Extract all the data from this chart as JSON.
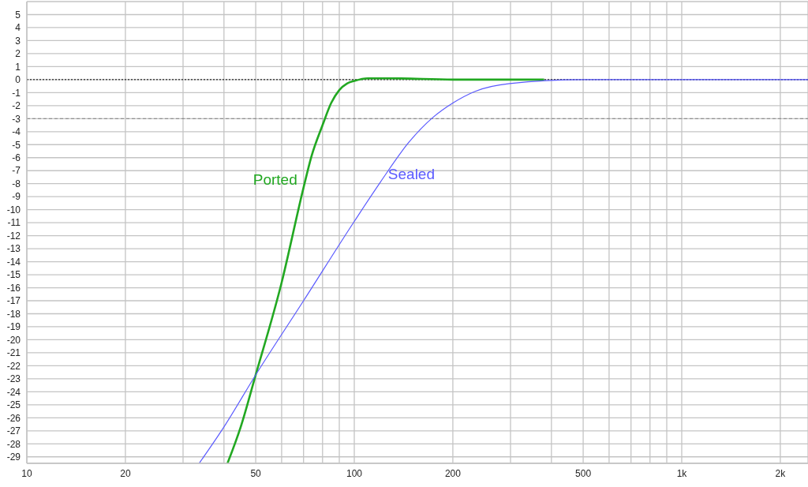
{
  "chart_data": {
    "type": "line",
    "xlim": [
      10,
      2430
    ],
    "ylim": [
      -29.5,
      6
    ],
    "log": "x",
    "xticks": [
      10,
      20,
      {
        "value": 30,
        "label": null
      },
      {
        "value": 40,
        "label": null
      },
      50,
      {
        "value": 60,
        "label": null
      },
      {
        "value": 70,
        "label": null
      },
      {
        "value": 80,
        "label": null
      },
      {
        "value": 90,
        "label": null
      },
      100,
      200,
      {
        "value": 300,
        "label": null
      },
      {
        "value": 400,
        "label": null
      },
      500,
      {
        "value": 600,
        "label": null
      },
      {
        "value": 700,
        "label": null
      },
      {
        "value": 800,
        "label": null
      },
      {
        "value": 900,
        "label": null
      },
      {
        "value": 1000,
        "label": "1k"
      },
      {
        "value": 2000,
        "label": "2k"
      }
    ],
    "yticks": [
      5,
      4,
      3,
      2,
      1,
      0,
      -1,
      -2,
      -3,
      -4,
      -5,
      -6,
      -7,
      -8,
      -9,
      -10,
      -11,
      -12,
      -13,
      -14,
      -15,
      -16,
      -17,
      -18,
      -19,
      -20,
      -21,
      -22,
      -23,
      -24,
      -25,
      -26,
      -27,
      -28,
      -29
    ],
    "grid": true,
    "marker": "none",
    "line_style": "solid",
    "ref_lines": [
      {
        "axis": "y",
        "value": 0,
        "color": "#000000",
        "line_style": "dotted"
      },
      {
        "axis": "y",
        "value": -3,
        "color": "#808080",
        "line_style": "dashed"
      }
    ],
    "series": [
      {
        "name": "Ported",
        "color": "#22a822",
        "x": [
          41,
          45,
          50,
          60,
          70,
          74,
          80,
          85,
          90,
          95,
          100,
          110,
          130,
          200,
          380
        ],
        "values": [
          -29.5,
          -26.7,
          -22.7,
          -15.6,
          -8.3,
          -5.9,
          -3.5,
          -1.8,
          -0.8,
          -0.3,
          -0.1,
          0.1,
          0.1,
          0,
          0
        ]
      },
      {
        "name": "Sealed",
        "color": "#5a5aff",
        "x": [
          33.6,
          40,
          50,
          70,
          100,
          120,
          147,
          174,
          200,
          234,
          298,
          500,
          1000,
          2430
        ],
        "values": [
          -29.5,
          -26.7,
          -22.7,
          -17.0,
          -10.9,
          -7.9,
          -4.8,
          -2.9,
          -1.8,
          -0.9,
          -0.3,
          0,
          0,
          0
        ]
      }
    ]
  }
}
